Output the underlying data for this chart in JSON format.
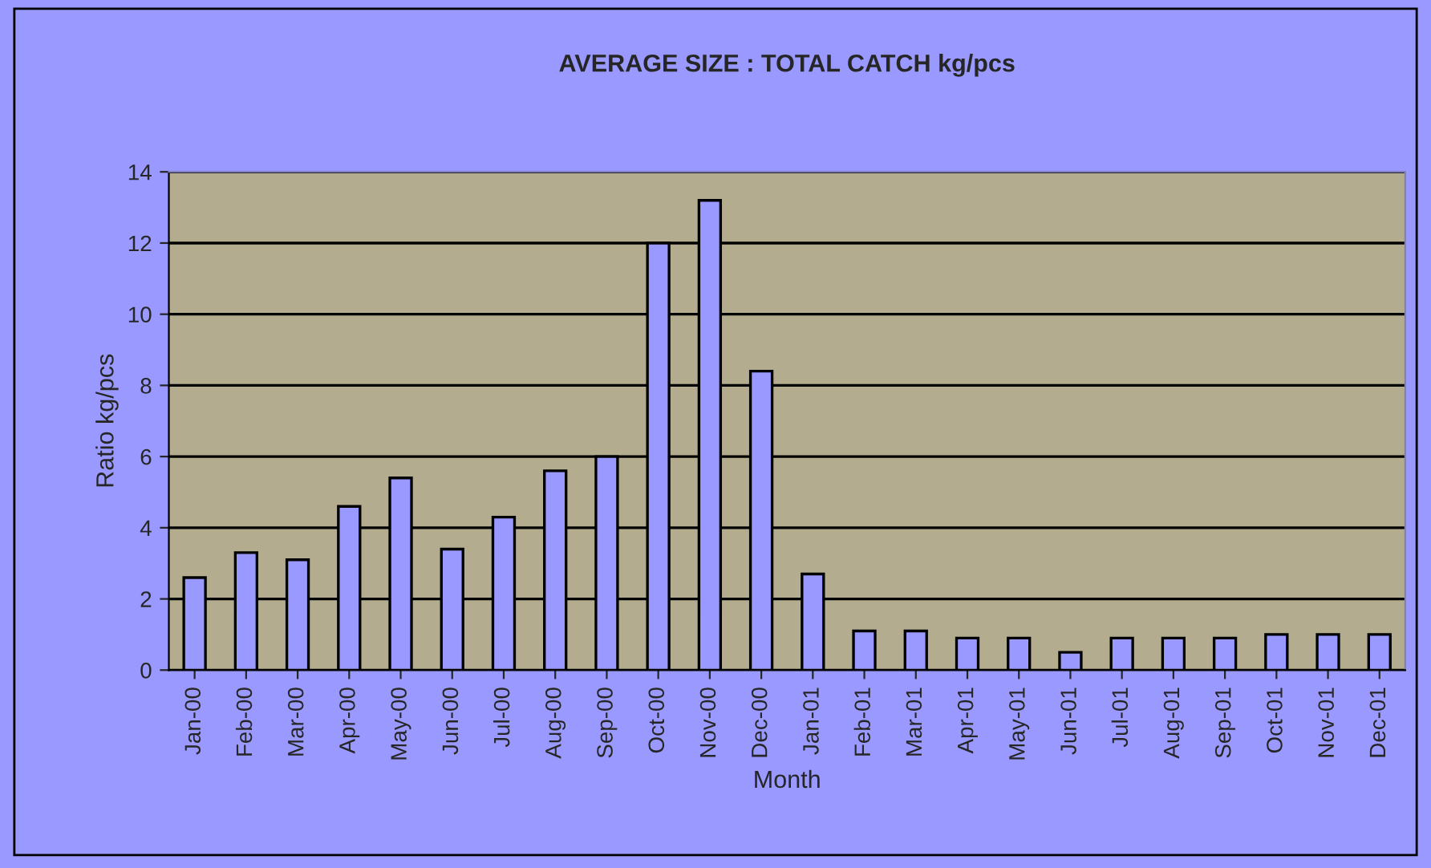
{
  "chart_data": {
    "type": "bar",
    "title": "AVERAGE SIZE : TOTAL CATCH kg/pcs",
    "xlabel": "Month",
    "ylabel": "Ratio kg/pcs",
    "categories": [
      "Jan-00",
      "Feb-00",
      "Mar-00",
      "Apr-00",
      "May-00",
      "Jun-00",
      "Jul-00",
      "Aug-00",
      "Sep-00",
      "Oct-00",
      "Nov-00",
      "Dec-00",
      "Jan-01",
      "Feb-01",
      "Mar-01",
      "Apr-01",
      "May-01",
      "Jun-01",
      "Jul-01",
      "Aug-01",
      "Sep-01",
      "Oct-01",
      "Nov-01",
      "Dec-01"
    ],
    "values": [
      2.6,
      3.3,
      3.1,
      4.6,
      5.4,
      3.4,
      4.3,
      5.6,
      6.0,
      12.0,
      13.2,
      8.4,
      2.7,
      1.1,
      1.1,
      0.9,
      0.9,
      0.5,
      0.9,
      0.9,
      0.9,
      1.0,
      1.0,
      1.0
    ],
    "color": "#9999ff",
    "ylim": [
      0,
      14
    ],
    "yticks": [
      0,
      2,
      4,
      6,
      8,
      10,
      12,
      14
    ],
    "grid": "y",
    "legend": false
  }
}
